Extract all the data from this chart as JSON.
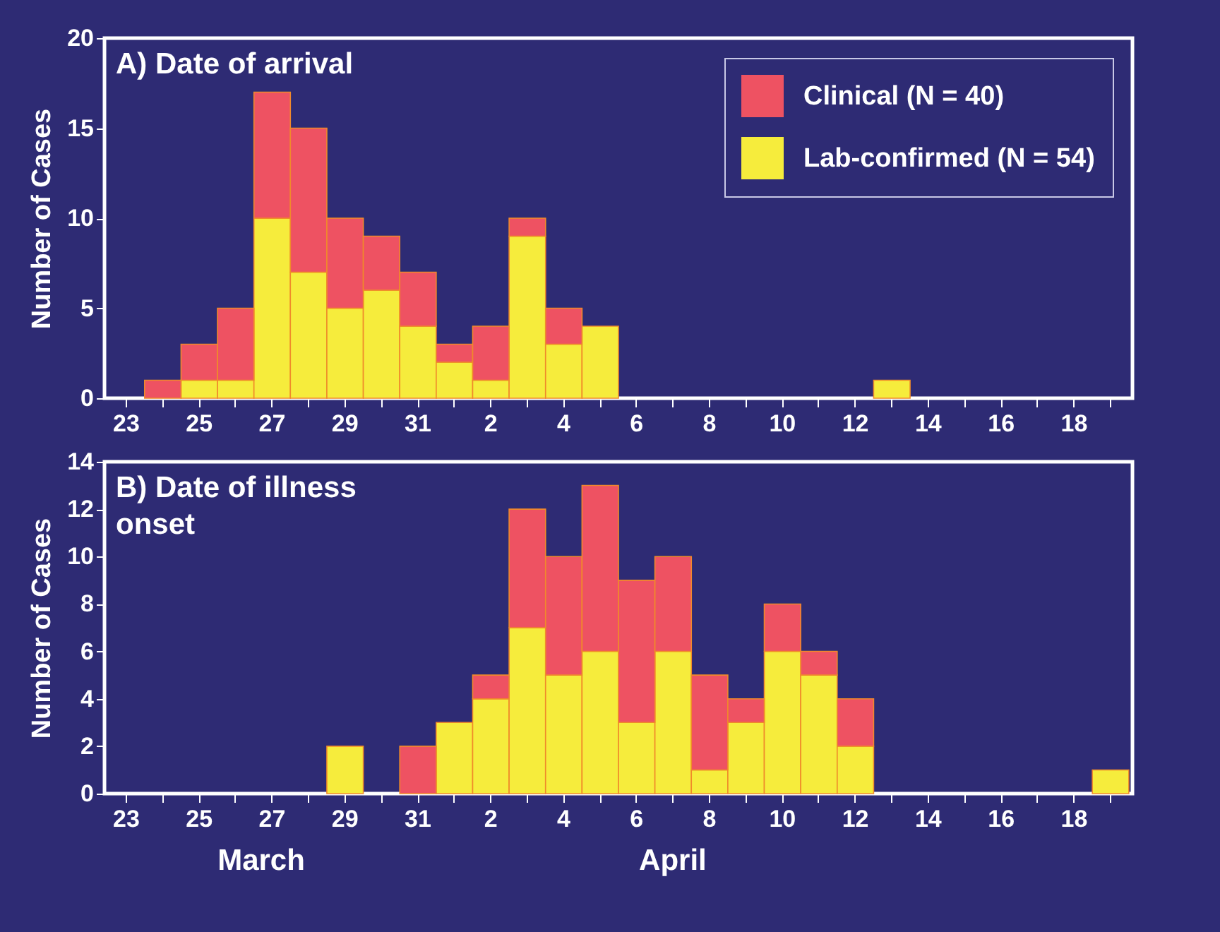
{
  "chart_data": [
    {
      "type": "bar",
      "title": "A) Date of arrival",
      "ylabel": "Number of Cases",
      "stacked": true,
      "legend": "top right",
      "categories": [
        "23",
        null,
        "25",
        null,
        "27",
        null,
        "29",
        null,
        "31",
        null,
        "2",
        null,
        "4",
        null,
        "6",
        null,
        "8",
        null,
        "10",
        null,
        "12",
        null,
        "14",
        null,
        "16",
        null,
        "18",
        null
      ],
      "series": [
        {
          "name": "Lab-confirmed (N = 54)",
          "color": "#f6ec3c",
          "values": [
            0,
            0,
            1,
            1,
            10,
            7,
            5,
            6,
            4,
            2,
            1,
            9,
            3,
            4,
            0,
            0,
            0,
            0,
            0,
            0,
            0,
            1,
            0,
            0,
            0,
            0,
            0,
            0
          ]
        },
        {
          "name": "Clinical (N = 40)",
          "color": "#ee5262",
          "values": [
            0,
            1,
            2,
            4,
            7,
            8,
            5,
            3,
            3,
            1,
            3,
            1,
            2,
            0,
            0,
            0,
            0,
            0,
            0,
            0,
            0,
            0,
            0,
            0,
            0,
            0,
            0,
            0
          ]
        }
      ],
      "ylim": [
        0,
        20
      ],
      "yticks": [
        0,
        5,
        10,
        15,
        20
      ],
      "grid": false
    },
    {
      "type": "bar",
      "title": "B) Date of illness onset",
      "ylabel": "Number of Cases",
      "stacked": true,
      "legend": false,
      "categories": [
        "23",
        null,
        "25",
        null,
        "27",
        null,
        "29",
        null,
        "31",
        null,
        "2",
        null,
        "4",
        null,
        "6",
        null,
        "8",
        null,
        "10",
        null,
        "12",
        null,
        "14",
        null,
        "16",
        null,
        "18",
        null
      ],
      "series": [
        {
          "color": "#f6ec3c",
          "values": [
            0,
            0,
            0,
            0,
            0,
            0,
            2,
            0,
            0,
            3,
            4,
            7,
            5,
            6,
            3,
            6,
            1,
            3,
            6,
            5,
            2,
            0,
            0,
            0,
            0,
            0,
            0,
            1
          ]
        },
        {
          "color": "#ee5262",
          "values": [
            0,
            0,
            0,
            0,
            0,
            0,
            0,
            0,
            2,
            0,
            1,
            5,
            5,
            7,
            6,
            4,
            4,
            1,
            2,
            1,
            2,
            0,
            0,
            0,
            0,
            0,
            0,
            0
          ]
        }
      ],
      "ylim": [
        0,
        14
      ],
      "yticks": [
        0,
        2,
        4,
        6,
        8,
        10,
        12,
        14
      ],
      "grid": false,
      "annotations": [
        "March",
        "April"
      ]
    }
  ]
}
